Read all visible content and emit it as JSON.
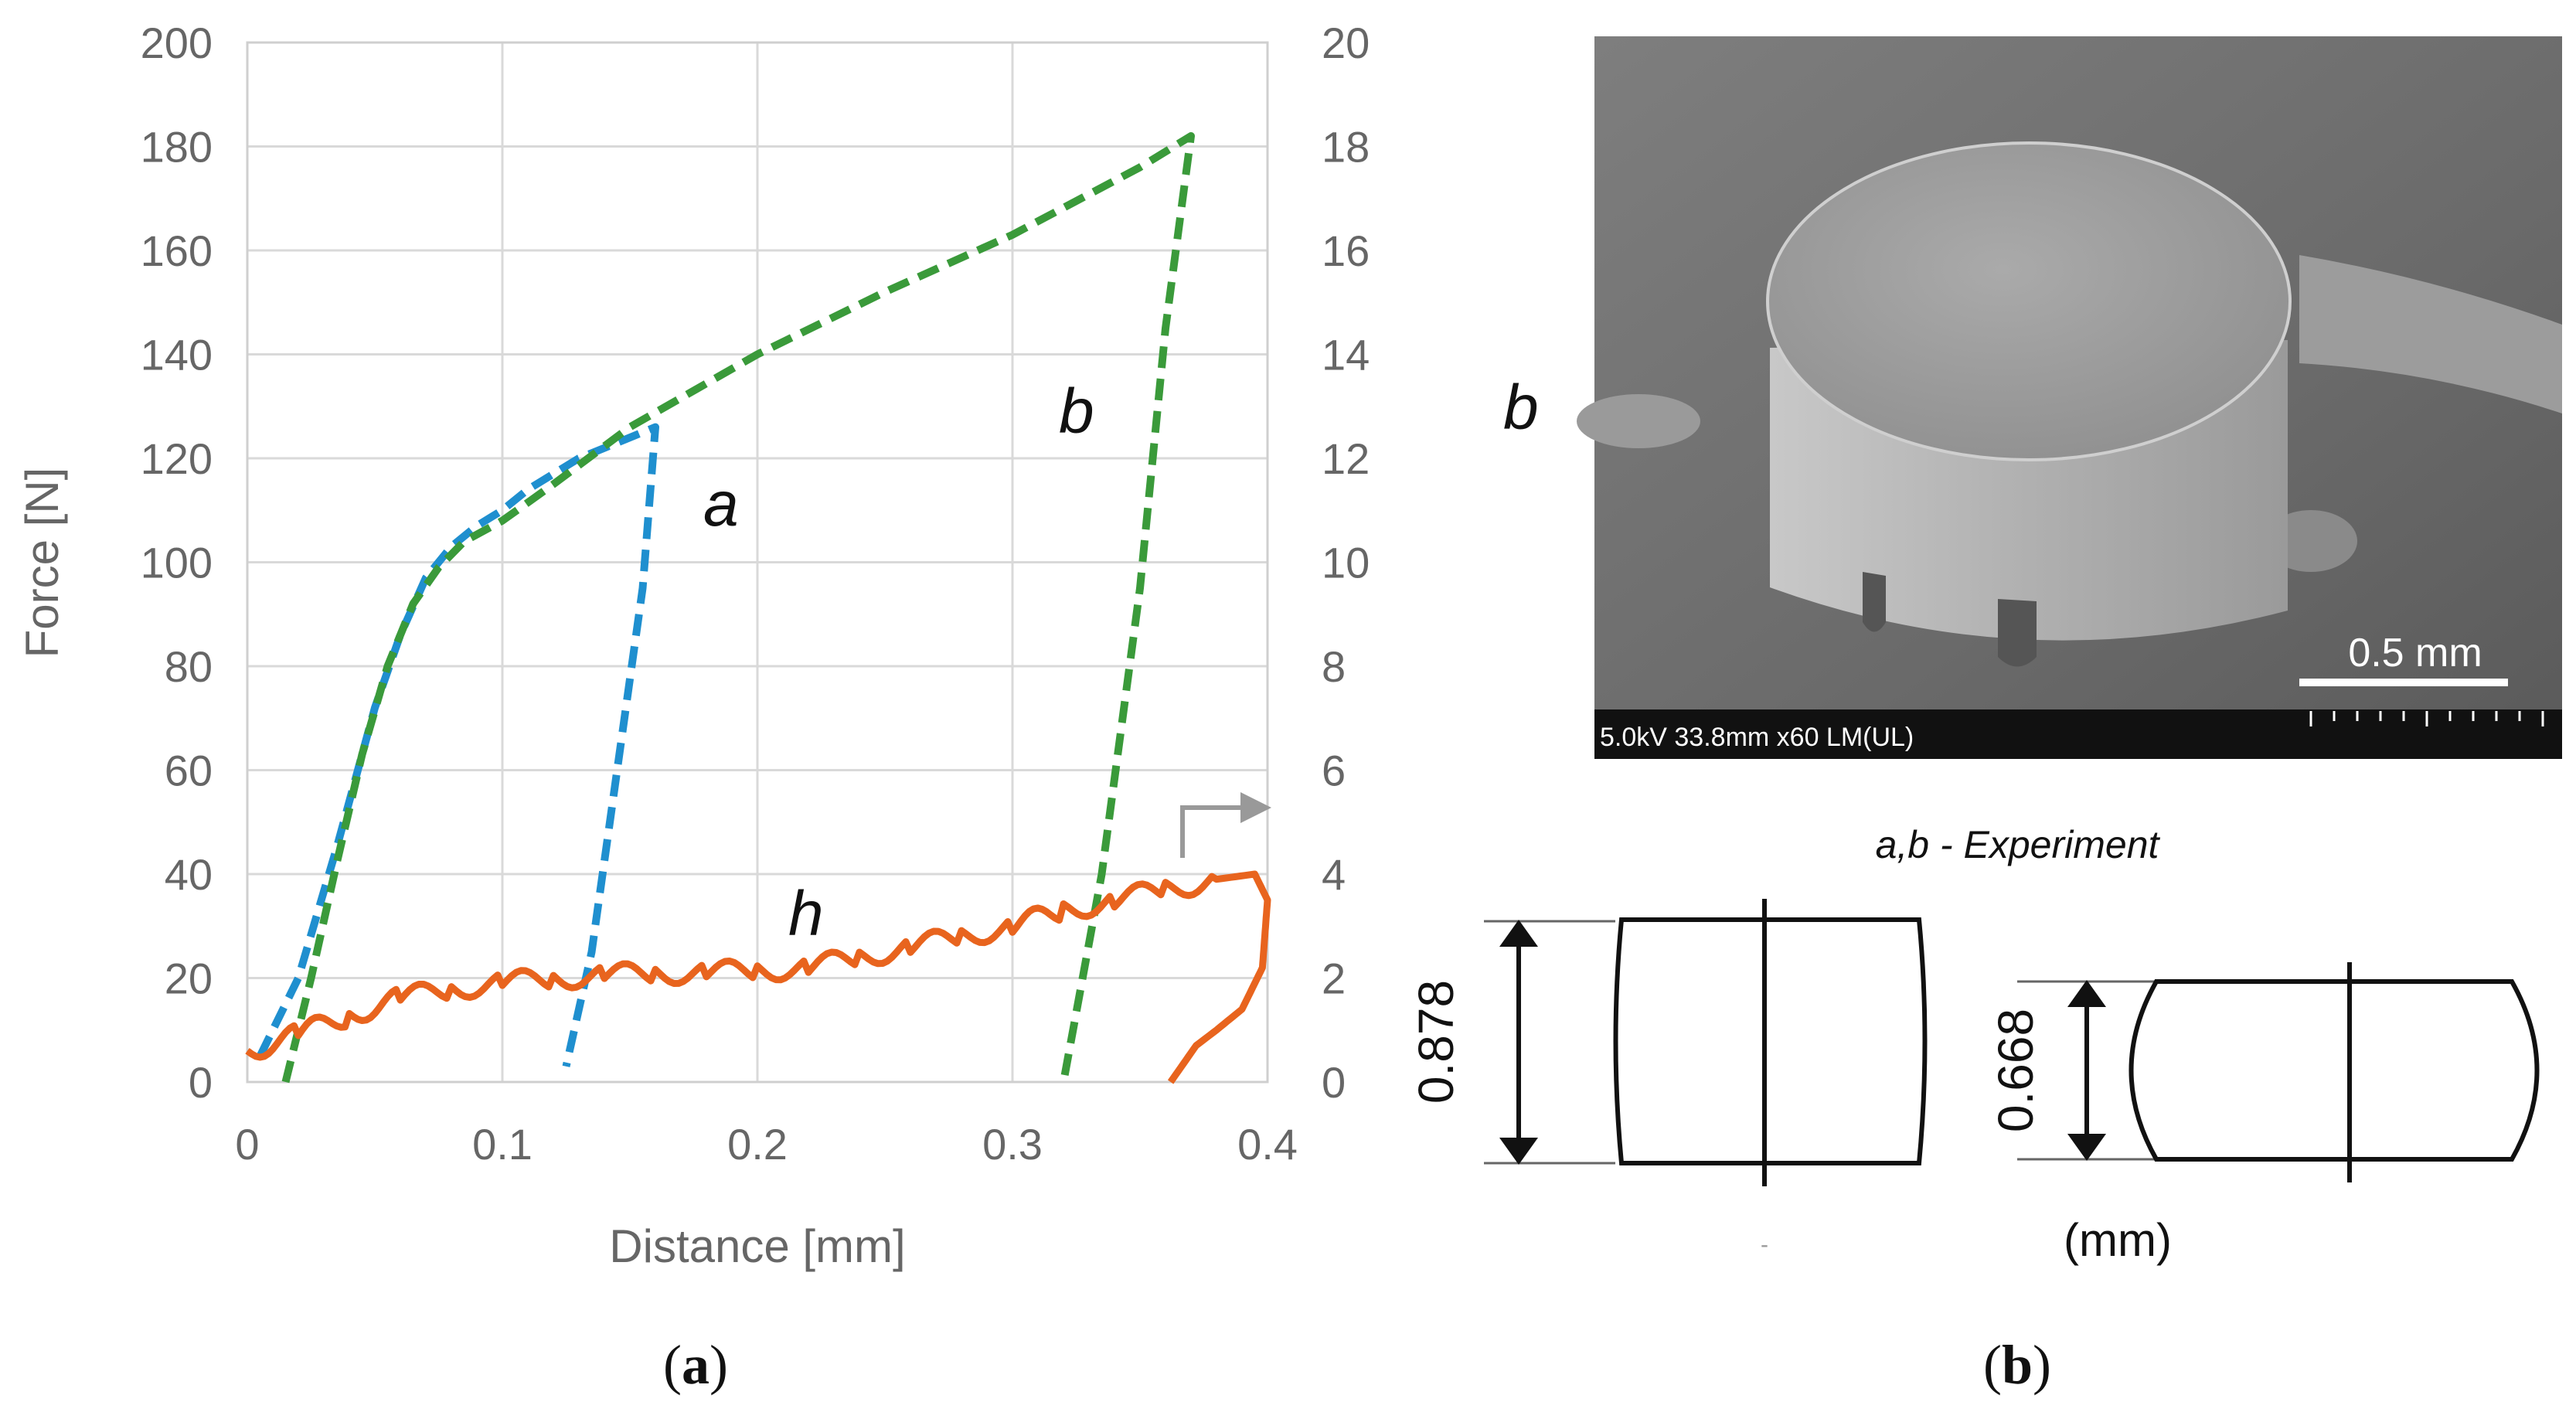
{
  "panel_a": {
    "caption_open": "(",
    "caption_letter": "a",
    "caption_close": ")"
  },
  "panel_b": {
    "caption_open": "(",
    "caption_letter": "b",
    "caption_close": ")",
    "sem_label": "b",
    "scale_bar_label": "0.5 mm",
    "sem_info": "5.0kV 33.8mm x60 LM(UL)",
    "experiment_title": "a,b - Experiment",
    "left_height": "0.878",
    "right_height": "0.668",
    "unit_label": "(mm)",
    "dash_mark": "-"
  },
  "chart_data": {
    "type": "line",
    "title": "",
    "xlabel": "Distance [mm]",
    "ylabel": "Force [N]",
    "xlim": [
      0,
      0.4
    ],
    "ylim": [
      0,
      200
    ],
    "y2lim": [
      0,
      20
    ],
    "x_ticks": [
      0,
      0.1,
      0.2,
      0.3,
      0.4
    ],
    "x_tick_labels": [
      "0",
      "0.1",
      "0.2",
      "0.3",
      "0.4"
    ],
    "y_ticks": [
      0,
      20,
      40,
      60,
      80,
      100,
      120,
      140,
      160,
      180,
      200
    ],
    "y_tick_labels": [
      "0",
      "20",
      "40",
      "60",
      "80",
      "100",
      "120",
      "140",
      "160",
      "180",
      "200"
    ],
    "y2_ticks": [
      0,
      2,
      4,
      6,
      8,
      10,
      12,
      14,
      16,
      18,
      20
    ],
    "y2_tick_labels": [
      "0",
      "2",
      "4",
      "6",
      "8",
      "10",
      "12",
      "14",
      "16",
      "18",
      "20"
    ],
    "grid": true,
    "series": [
      {
        "name": "a",
        "label": "a",
        "axis": "left",
        "color": "#1f8fcf",
        "style": "dashed",
        "x": [
          0.005,
          0.02,
          0.035,
          0.05,
          0.06,
          0.07,
          0.08,
          0.09,
          0.1,
          0.11,
          0.12,
          0.13,
          0.14,
          0.15,
          0.16,
          0.155,
          0.145,
          0.135,
          0.125
        ],
        "y": [
          5,
          20,
          45,
          72,
          86,
          97,
          103,
          107,
          110,
          114,
          117,
          120,
          122,
          124,
          126,
          95,
          60,
          25,
          3
        ]
      },
      {
        "name": "b",
        "label": "b",
        "axis": "left",
        "color": "#3a9a3a",
        "style": "dashed",
        "x": [
          0.015,
          0.025,
          0.035,
          0.045,
          0.055,
          0.065,
          0.075,
          0.085,
          0.1,
          0.12,
          0.15,
          0.2,
          0.25,
          0.3,
          0.35,
          0.37,
          0.36,
          0.35,
          0.335,
          0.32
        ],
        "y": [
          0,
          20,
          42,
          63,
          80,
          92,
          99,
          104,
          108,
          115,
          126,
          140,
          152,
          163,
          176,
          182,
          145,
          95,
          40,
          0
        ]
      },
      {
        "name": "h",
        "label": "h",
        "axis": "right",
        "color": "#e8641e",
        "style": "solid",
        "x": [
          0,
          0.02,
          0.04,
          0.06,
          0.08,
          0.1,
          0.12,
          0.14,
          0.16,
          0.18,
          0.2,
          0.22,
          0.24,
          0.26,
          0.28,
          0.3,
          0.32,
          0.34,
          0.36,
          0.38,
          0.395,
          0.4,
          0.398,
          0.39,
          0.38,
          0.372,
          0.362
        ],
        "y": [
          0.6,
          0.9,
          1.3,
          1.6,
          1.8,
          1.9,
          2.0,
          2.05,
          2.1,
          2.1,
          2.15,
          2.2,
          2.4,
          2.6,
          2.8,
          3.0,
          3.3,
          3.5,
          3.7,
          3.9,
          4.0,
          3.5,
          2.2,
          1.4,
          1.0,
          0.7,
          0.0
        ]
      }
    ],
    "annotations": [
      {
        "text": "a",
        "near_series": "a"
      },
      {
        "text": "b",
        "near_series": "b"
      },
      {
        "text": "h",
        "near_series": "h"
      }
    ]
  }
}
